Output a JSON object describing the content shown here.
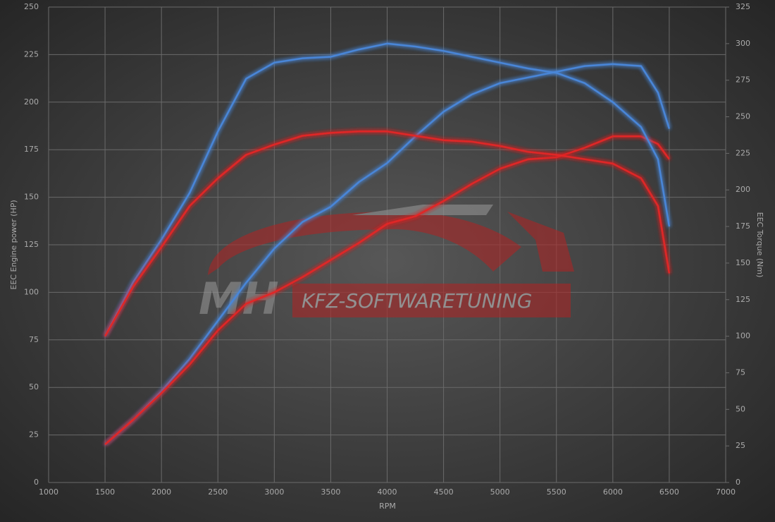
{
  "chart_data": {
    "type": "line",
    "xlabel": "RPM",
    "ylabel": "EEC Engine power (HP)",
    "y2label": "EEC Torque (Nm)",
    "annotations": [
      "MH",
      "KFZ-SOFTWARETUNING"
    ],
    "x": [
      1500,
      1750,
      2000,
      2250,
      2500,
      2750,
      3000,
      3250,
      3500,
      3750,
      4000,
      4250,
      4500,
      4750,
      5000,
      5250,
      5500,
      5750,
      6000,
      6250,
      6400,
      6500
    ],
    "xlim": [
      1000,
      7000
    ],
    "xticks": [
      1000,
      1500,
      2000,
      2500,
      3000,
      3500,
      4000,
      4500,
      5000,
      5500,
      6000,
      6500,
      7000
    ],
    "ylim": [
      0,
      250
    ],
    "yticks": [
      0,
      25,
      50,
      75,
      100,
      125,
      150,
      175,
      200,
      225,
      250
    ],
    "y2lim": [
      0,
      325
    ],
    "y2ticks": [
      0,
      25,
      50,
      75,
      100,
      125,
      150,
      175,
      200,
      225,
      250,
      275,
      300,
      325
    ],
    "grid": true,
    "series": [
      {
        "color": "#4a86d8",
        "values": [
          20,
          33,
          48,
          65,
          85,
          105,
          123,
          137,
          145,
          158,
          168,
          182,
          195,
          204,
          210,
          213,
          216,
          219,
          220,
          219,
          205,
          186
        ]
      },
      {
        "color": "#e02828",
        "values": [
          20,
          33,
          47,
          62,
          80,
          94,
          100,
          108,
          117,
          126,
          136,
          140,
          148,
          157,
          165,
          170,
          171,
          176,
          182,
          182,
          178,
          170
        ]
      },
      {
        "color": "#4a86d8",
        "axis": "y2",
        "values": [
          100,
          137,
          166,
          198,
          240,
          276,
          287,
          290,
          291,
          296,
          300,
          298,
          295,
          291,
          287,
          283,
          280,
          273,
          260,
          243,
          221,
          175
        ]
      },
      {
        "color": "#e02828",
        "axis": "y2",
        "values": [
          100,
          134,
          161,
          189,
          208,
          224,
          231,
          237,
          239,
          240,
          240,
          237,
          234,
          233,
          230,
          226,
          224,
          221,
          218,
          208,
          189,
          143
        ]
      }
    ]
  }
}
